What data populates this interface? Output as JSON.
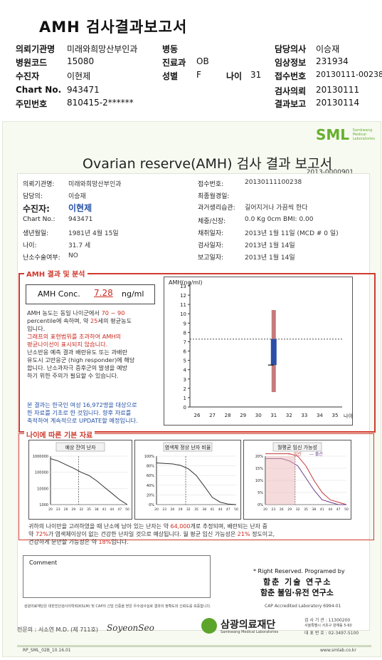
{
  "title": "AMH 검사결과보고서",
  "header": {
    "left": [
      {
        "label": "의뢰기관명",
        "value": "미래와희망산부인과"
      },
      {
        "label": "병원코드",
        "value": "15080"
      },
      {
        "label": "수진자",
        "value": "이현제"
      },
      {
        "label": "Chart No.",
        "value": "943471"
      },
      {
        "label": "주민번호",
        "value": "810415-2******"
      }
    ],
    "mid": [
      {
        "label": "병동",
        "value": ""
      },
      {
        "label": "진료과",
        "value": "OB"
      },
      {
        "label": "성별",
        "value": "F"
      }
    ],
    "age_label": "나이",
    "age_value": "31",
    "right": [
      {
        "label": "담당의사",
        "value": "이승재"
      },
      {
        "label": "임상정보",
        "value": "231934"
      },
      {
        "label": "접수번호",
        "value": "20130111-00238"
      },
      {
        "label": "검사의뢰",
        "value": "20130111"
      },
      {
        "label": "결과보고",
        "value": "20130114"
      }
    ]
  },
  "report": {
    "logo": "SML",
    "logo_sub": [
      "Samkwang",
      "Medical",
      "Laboratories"
    ],
    "title": "Ovarian reserve(AMH) 검사 결과 보고서",
    "doc_no": "2013-0000901",
    "info_left": [
      {
        "label": "의뢰기관명:",
        "value": "미래와희망산부인과"
      },
      {
        "label": "담당의:",
        "value": "이승재"
      },
      {
        "label": "수진자:",
        "value": "이현제"
      },
      {
        "label": "Chart No.:",
        "value": "943471"
      },
      {
        "label": "생년월일:",
        "value": "1981년 4월 15일"
      },
      {
        "label": "나이:",
        "value": "31.7 세"
      },
      {
        "label": "난소수술여부:",
        "value": "NO"
      }
    ],
    "info_right": [
      {
        "label": "접수번호:",
        "value": "20130111100238"
      },
      {
        "label": "최종월경일:",
        "value": ""
      },
      {
        "label": "과거생리습관:",
        "value": "길어지거나 가끔씩 한다"
      },
      {
        "label": "체중/신장:",
        "value": "0.0 Kg     0cm    BMI: 0.00"
      },
      {
        "label": "채취일자:",
        "value": "2013년 1월 11일   (MCD # 0 일)"
      },
      {
        "label": "검사일자:",
        "value": "2013년 1월 14일"
      },
      {
        "label": "보고일자:",
        "value": "2013년 1월 14일"
      }
    ],
    "section1_title": "AMH 결과 및 분석",
    "conc_label": "AMH Conc.",
    "conc_value": "7.28",
    "conc_unit": "ng/ml",
    "analysis": {
      "p1a": "AMH 농도는 동일 나이군에서",
      "p1_range": "70 ~ 90",
      "p1b": "percentile에 속하며, 약",
      "p1_age": "25",
      "p1c": "세의 평균농도",
      "p1d": "입니다.",
      "p2a": "그래프의 표현범위를 초과하여 AMH의",
      "p2b": "평균나이선이 표시되지 않습니다.",
      "p3a": "난소반응 예측 결과 배란유도 또는 과배란",
      "p3b": "유도시 고반응군 (high responder)에 해당",
      "p3c": "합니다. 난소과자극 증후군의 발생을 예방",
      "p3d": "하기 위한 주의가 필요할 수 있습니다.",
      "p4a": "본 결과는 한국인 여성 16,972명을 대상으로",
      "p4b": "한 자료를 기초로 한 것입니다. 향후 자료를",
      "p4c": "축적하여 계속적으로 UPDATE할 예정입니다."
    },
    "section2_title": "나이에 따른 기본 자료",
    "mini_titles": [
      "예상 잔여 난자",
      "염색체 정상 난자 비율",
      "월평균 임신 가능성"
    ],
    "mini3_legend_a": "임신",
    "mini3_legend_b": "출산",
    "summary1a": "귀하의 나이만을 고려하였을 때 난소에 남아 있는 난자는 약",
    "summary1_num": "64,000",
    "summary1b": "개로 추정되며, 배란되는 난자 중",
    "summary2a": "약",
    "summary2_pct": "72%",
    "summary2b": "가 염색체이상이 없는 건강한 난자일 것으로 예상됩니다. 월 평균 임신 가능성은",
    "summary2_pct2": "21%",
    "summary2c": "정도이고,",
    "summary3a": "건강하게 분만할 가능성은 약",
    "summary3_pct": "18%",
    "summary3b": "입니다.",
    "comment_label": "Comment",
    "rights": "* Right Reserved. Programed by",
    "org1": "함춘 기술 연구소",
    "org2": "함춘 불임·유전 연구소",
    "footnote1": "삼광의료재단은 대한진단검사의학회(KSLM) 및 CAP의 신임 인증을 받은 우수검사실로 결과의 정확도와 신뢰도를 보증합니다.",
    "footnote_cap": "CAP  Accredited  Laboratory    6994-01",
    "doctor": "전문의 : 서소연 M.D. (제 711호)",
    "signature": "SoyeonSeo",
    "foundation": "삼광의료재단",
    "foundation_en": "Samkwang Medical Laboratories",
    "contact1": "검 사 기 관 : 11300200",
    "contact2": "서울특별시 서초구 양재동 5-60",
    "contact3": "대 표 번 호 : 02-3497-5100",
    "form_code": "RP_SML_02B_10.16.01",
    "website": "www.smlab.co.kr"
  },
  "chart_data": [
    {
      "type": "bar",
      "title": "",
      "ylabel": "AMH(ng/ml)",
      "x": [
        26,
        27,
        28,
        29,
        30,
        31,
        32,
        33,
        34,
        35
      ],
      "x_extra_label": "나이",
      "ylim": [
        0,
        13
      ],
      "yticks": [
        0,
        1,
        2,
        3,
        4,
        5,
        6,
        7,
        8,
        9,
        10,
        11,
        12,
        13
      ],
      "reference_line_y": 7.28,
      "range_bar": {
        "x": 31,
        "low": 1.6,
        "high": 10.4
      },
      "iqr_box": {
        "x": 31,
        "low": 4.5,
        "high": 7.3
      },
      "median_tick": {
        "x": 31,
        "y": 4.5
      }
    },
    {
      "type": "line",
      "title": "예상 잔여 난자",
      "ylabel": "",
      "x": [
        20,
        23,
        26,
        29,
        32,
        35,
        38,
        41,
        44,
        47,
        50
      ],
      "y_log": true,
      "yticks": [
        "1000000",
        "100000",
        "10000",
        "1000"
      ],
      "values": [
        700000,
        500000,
        300000,
        180000,
        100000,
        64000,
        30000,
        12000,
        5000,
        2000,
        1000
      ],
      "marker_x": 31
    },
    {
      "type": "line",
      "title": "염색체 정상 난자 비율",
      "x": [
        20,
        23,
        26,
        29,
        32,
        35,
        38,
        41,
        44,
        47,
        50
      ],
      "yticks": [
        "100%",
        "80%",
        "60%",
        "40%",
        "20%",
        "0%"
      ],
      "values": [
        86,
        85,
        84,
        81,
        74,
        60,
        38,
        15,
        5,
        1,
        0
      ],
      "marker_x": 31
    },
    {
      "type": "line",
      "title": "월평균 임신 가능성",
      "x": [
        20,
        23,
        26,
        29,
        32,
        35,
        38,
        41,
        44,
        47,
        50
      ],
      "yticks": [
        "20%",
        "15%",
        "10%",
        "5%",
        "0%"
      ],
      "series": [
        {
          "name": "임신",
          "values": [
            21,
            21,
            21,
            21,
            20,
            16,
            10,
            5,
            2,
            1,
            0
          ]
        },
        {
          "name": "출산",
          "values": [
            19,
            19,
            19,
            18,
            16,
            11,
            6,
            2,
            1,
            0,
            0
          ]
        }
      ],
      "marker_x": 31
    }
  ]
}
